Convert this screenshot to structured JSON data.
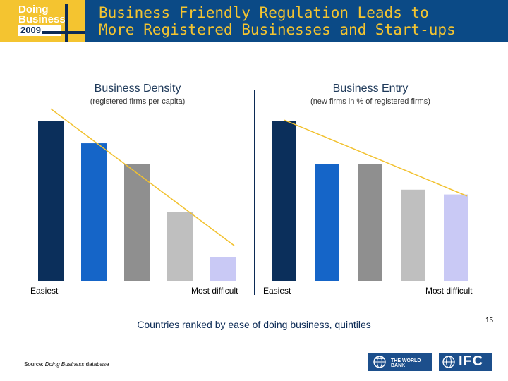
{
  "header": {
    "logo_line1": "Doing",
    "logo_line2": "Business",
    "logo_year": "2009",
    "title_line1": "Business Friendly Regulation Leads to",
    "title_line2": "More Registered Businesses and Start-ups"
  },
  "chart_data": [
    {
      "type": "bar",
      "title": "Business Density",
      "subtitle": "(registered firms per capita)",
      "x_tick_labels": [
        "Easiest",
        "Most difficult"
      ],
      "categories": [
        "1",
        "2",
        "3",
        "4",
        "5"
      ],
      "values": [
        100,
        86,
        73,
        43,
        15
      ],
      "ylim": [
        0,
        105
      ],
      "trendline": {
        "from": 104,
        "to": 22
      },
      "colors": [
        "#0b2f5b",
        "#1565c8",
        "#8f8f8f",
        "#bfbfbf",
        "#c9c9f5"
      ],
      "trendline_color": "#f2c12e",
      "grid": false
    },
    {
      "type": "bar",
      "title": "Business Entry",
      "subtitle": "(new firms in % of registered firms)",
      "x_tick_labels": [
        "Easiest",
        "Most difficult"
      ],
      "categories": [
        "1",
        "2",
        "3",
        "4",
        "5"
      ],
      "values": [
        100,
        73,
        73,
        57,
        54
      ],
      "ylim": [
        0,
        105
      ],
      "trendline": {
        "from": 97,
        "to": 53
      },
      "colors": [
        "#0b2f5b",
        "#1565c8",
        "#8f8f8f",
        "#bfbfbf",
        "#c9c9f5"
      ],
      "trendline_color": "#f2c12e",
      "grid": false
    }
  ],
  "caption": "Countries ranked by ease of doing business, quintiles",
  "page_number": "15",
  "source_prefix": "Source: ",
  "source_italic": "Doing Business",
  "source_suffix": " database",
  "logos": {
    "worldbank": "THE WORLD BANK",
    "ifc": "IFC"
  }
}
